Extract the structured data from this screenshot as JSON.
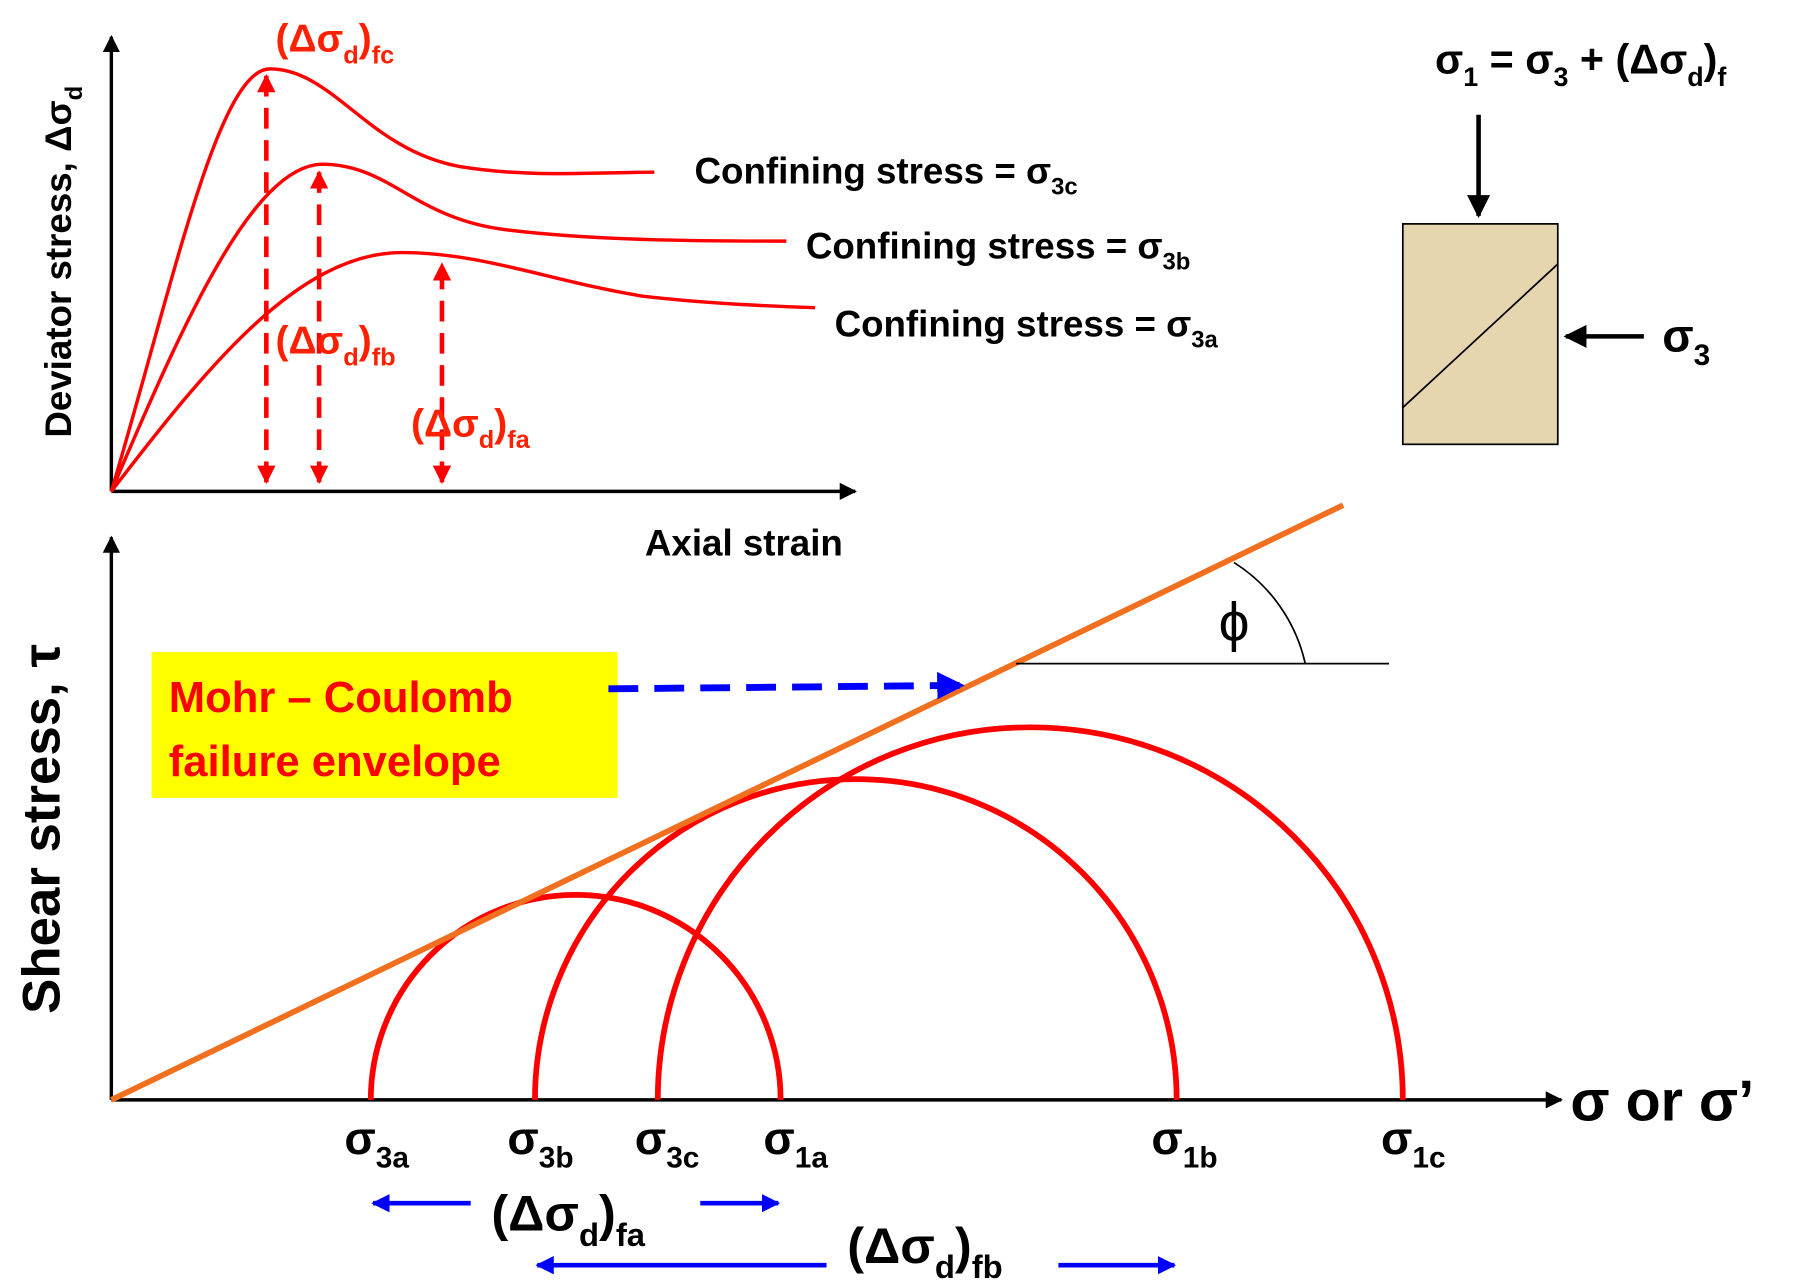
{
  "top_plot": {
    "y_axis_label": [
      {
        "text": "Deviator stress, Δσ"
      },
      {
        "text": "d",
        "sub": true
      }
    ],
    "x_axis_label": "Axial strain",
    "peak_labels": [
      [
        {
          "text": "(Δσ"
        },
        {
          "text": "d",
          "sub": true
        },
        {
          "text": ")"
        },
        {
          "text": "fc",
          "sub": true
        }
      ],
      [
        {
          "text": "(Δσ"
        },
        {
          "text": "d",
          "sub": true
        },
        {
          "text": ")"
        },
        {
          "text": "fb",
          "sub": true
        }
      ],
      [
        {
          "text": "(Δσ"
        },
        {
          "text": "d",
          "sub": true
        },
        {
          "text": ")"
        },
        {
          "text": "fa",
          "sub": true
        }
      ]
    ],
    "curve_labels": [
      [
        {
          "text": "Confining stress = σ"
        },
        {
          "text": "3c",
          "sub": true
        }
      ],
      [
        {
          "text": "Confining stress = σ"
        },
        {
          "text": "3b",
          "sub": true
        }
      ],
      [
        {
          "text": "Confining stress = σ"
        },
        {
          "text": "3a",
          "sub": true
        }
      ]
    ]
  },
  "specimen": {
    "axial_stress": [
      {
        "text": "σ"
      },
      {
        "text": "1",
        "sub": true
      },
      {
        "text": " = σ"
      },
      {
        "text": "3",
        "sub": true
      },
      {
        "text": " + (Δσ"
      },
      {
        "text": "d",
        "sub": true
      },
      {
        "text": ")"
      },
      {
        "text": "f",
        "sub": true
      }
    ],
    "lateral_stress": [
      {
        "text": "σ"
      },
      {
        "text": "3",
        "sub": true
      }
    ]
  },
  "mohr_plot": {
    "y_axis_label": "Shear stress, τ",
    "x_axis_label": "σ or σ’",
    "envelope_label": [
      "Mohr – Coulomb",
      "failure envelope"
    ],
    "angle_label": "ϕ",
    "stress_labels": [
      [
        {
          "text": "σ"
        },
        {
          "text": "3a",
          "sub": true
        }
      ],
      [
        {
          "text": "σ"
        },
        {
          "text": "3b",
          "sub": true
        }
      ],
      [
        {
          "text": "σ"
        },
        {
          "text": "3c",
          "sub": true
        }
      ],
      [
        {
          "text": "σ"
        },
        {
          "text": "1a",
          "sub": true
        }
      ],
      [
        {
          "text": "σ"
        },
        {
          "text": "1b",
          "sub": true
        }
      ],
      [
        {
          "text": "σ"
        },
        {
          "text": "1c",
          "sub": true
        }
      ]
    ],
    "difference_labels": [
      [
        {
          "text": "(Δσ"
        },
        {
          "text": "d",
          "sub": true
        },
        {
          "text": ")"
        },
        {
          "text": "fa",
          "sub": true
        }
      ],
      [
        {
          "text": "(Δσ"
        },
        {
          "text": "d",
          "sub": true
        },
        {
          "text": ")"
        },
        {
          "text": "fb",
          "sub": true
        }
      ]
    ]
  }
}
